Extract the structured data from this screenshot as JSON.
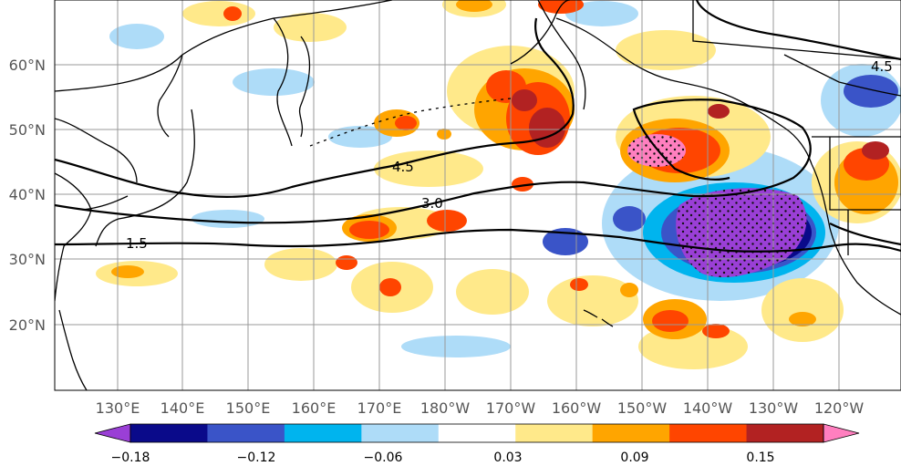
{
  "map": {
    "lat_labels": [
      "60°N",
      "50°N",
      "40°N",
      "30°N",
      "20°N"
    ],
    "lon_labels": [
      "130°E",
      "140°E",
      "150°E",
      "160°E",
      "170°E",
      "180°W",
      "170°W",
      "160°W",
      "150°W",
      "140°W",
      "130°W",
      "120°W"
    ],
    "contour_labels": [
      "4.5",
      "3.0",
      "1.5",
      "4.5"
    ]
  },
  "colorbar": {
    "colors": [
      "#9a3fd6",
      "#0a0a8a",
      "#3a54c8",
      "#00b4ee",
      "#aedcf8",
      "#ffffff",
      "#ffe98a",
      "#ffa500",
      "#ff4500",
      "#b22222",
      "#ff7fbf"
    ],
    "tick_labels": [
      "−0.18",
      "−0.12",
      "−0.06",
      "0.03",
      "0.09",
      "0.15"
    ]
  }
}
